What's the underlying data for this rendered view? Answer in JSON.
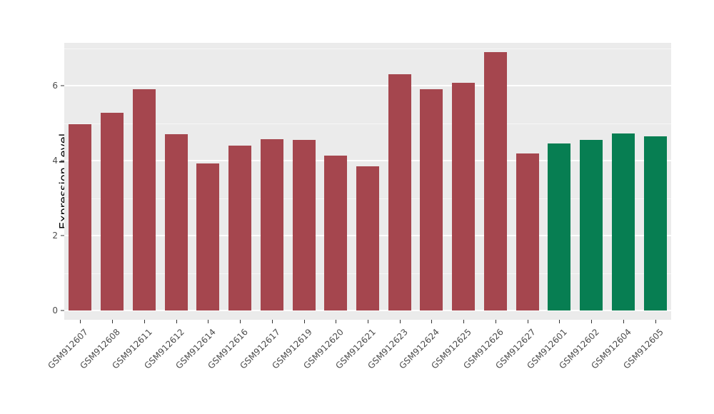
{
  "chart_data": {
    "type": "bar",
    "title": "",
    "xlabel": "",
    "ylabel": "Expression Level",
    "ylim": [
      0,
      7.14
    ],
    "yticks": [
      0,
      2,
      4,
      6
    ],
    "minor_gridlines": [
      1,
      3,
      5,
      7
    ],
    "grid": true,
    "legend": "none",
    "panel_background": "#EBEBEB",
    "gridline_color": "#FFFFFF",
    "categories": [
      "GSM912607",
      "GSM912608",
      "GSM912611",
      "GSM912612",
      "GSM912614",
      "GSM912616",
      "GSM912617",
      "GSM912619",
      "GSM912620",
      "GSM912621",
      "GSM912623",
      "GSM912624",
      "GSM912625",
      "GSM912626",
      "GSM912627",
      "GSM912601",
      "GSM912602",
      "GSM912604",
      "GSM912605"
    ],
    "values": [
      4.97,
      5.28,
      5.9,
      4.7,
      3.93,
      4.4,
      4.58,
      4.55,
      4.13,
      3.85,
      6.3,
      5.9,
      6.08,
      6.9,
      4.2,
      4.45,
      4.55,
      4.72,
      4.65
    ],
    "groups": [
      "red",
      "red",
      "red",
      "red",
      "red",
      "red",
      "red",
      "red",
      "red",
      "red",
      "red",
      "red",
      "red",
      "red",
      "red",
      "green",
      "green",
      "green",
      "green"
    ],
    "colors": {
      "red": "#A5464E",
      "green": "#077E52"
    }
  }
}
